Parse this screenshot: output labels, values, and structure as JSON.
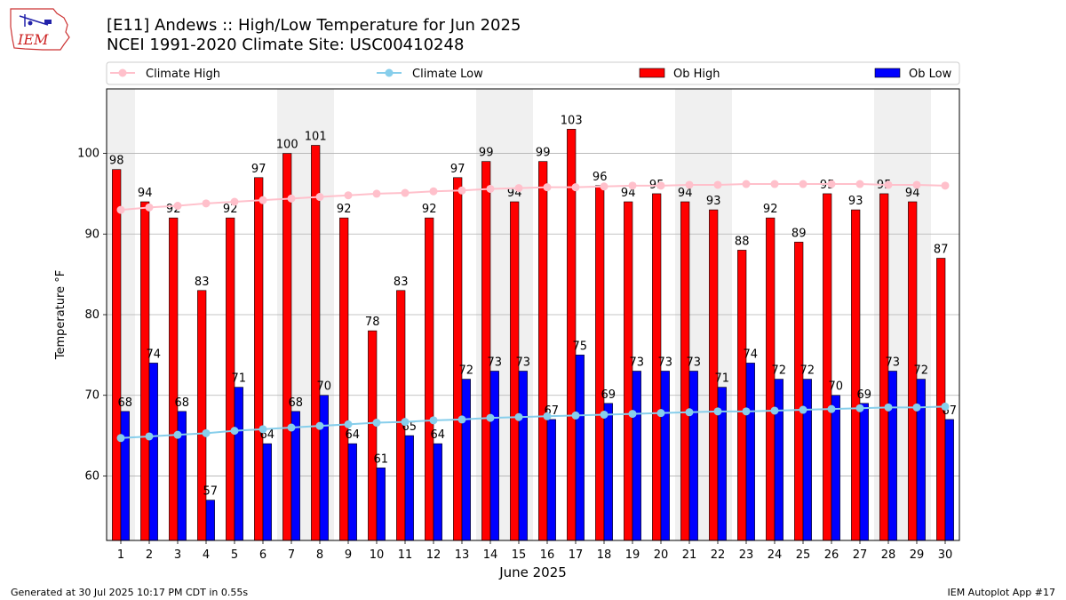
{
  "header": {
    "logo_text": "IEM",
    "title_line1": "[E11] Andews :: High/Low Temperature for Jun 2025",
    "title_line2": "NCEI 1991-2020 Climate Site: USC00410248"
  },
  "footer": {
    "generated": "Generated at 30 Jul 2025 10:17 PM CDT in 0.55s",
    "app": "IEM Autoplot App #17"
  },
  "colors": {
    "ob_high": "#ff0000",
    "ob_low": "#0000ff",
    "climate_high": "#ffc0cb",
    "climate_low": "#87ceeb",
    "weekend_shade": "#f0f0f0"
  },
  "chart_data": {
    "type": "bar",
    "xlabel": "June 2025",
    "ylabel": "Temperature °F",
    "ylim": [
      52,
      108
    ],
    "yticks": [
      60,
      70,
      80,
      90,
      100
    ],
    "grid": true,
    "legend_position": "top",
    "categories": [
      "1",
      "2",
      "3",
      "4",
      "5",
      "6",
      "7",
      "8",
      "9",
      "10",
      "11",
      "12",
      "13",
      "14",
      "15",
      "16",
      "17",
      "18",
      "19",
      "20",
      "21",
      "22",
      "23",
      "24",
      "25",
      "26",
      "27",
      "28",
      "29",
      "30"
    ],
    "shaded_weekends": [
      [
        1,
        1
      ],
      [
        7,
        8
      ],
      [
        14,
        15
      ],
      [
        21,
        22
      ],
      [
        28,
        29
      ]
    ],
    "series": [
      {
        "name": "Ob High",
        "kind": "bar",
        "values": [
          98,
          94,
          92,
          83,
          92,
          97,
          100,
          101,
          92,
          78,
          83,
          92,
          97,
          99,
          94,
          99,
          103,
          96,
          94,
          95,
          94,
          93,
          88,
          92,
          89,
          95,
          93,
          95,
          94,
          87
        ]
      },
      {
        "name": "Ob Low",
        "kind": "bar",
        "values": [
          68,
          74,
          68,
          57,
          71,
          64,
          68,
          70,
          64,
          61,
          65,
          64,
          72,
          73,
          73,
          67,
          75,
          69,
          73,
          73,
          73,
          71,
          74,
          72,
          72,
          70,
          69,
          73,
          72,
          67
        ]
      },
      {
        "name": "Climate High",
        "kind": "line",
        "values": [
          93.0,
          93.3,
          93.5,
          93.8,
          94.0,
          94.2,
          94.4,
          94.6,
          94.8,
          95.0,
          95.1,
          95.3,
          95.4,
          95.6,
          95.7,
          95.8,
          95.8,
          95.9,
          96.0,
          96.0,
          96.1,
          96.1,
          96.2,
          96.2,
          96.2,
          96.2,
          96.2,
          96.1,
          96.1,
          96.0
        ]
      },
      {
        "name": "Climate Low",
        "kind": "line",
        "values": [
          64.7,
          64.9,
          65.1,
          65.3,
          65.6,
          65.8,
          66.0,
          66.2,
          66.4,
          66.6,
          66.7,
          66.9,
          67.0,
          67.2,
          67.3,
          67.4,
          67.5,
          67.6,
          67.7,
          67.8,
          67.9,
          68.0,
          68.0,
          68.1,
          68.2,
          68.3,
          68.4,
          68.5,
          68.5,
          68.6
        ]
      }
    ]
  }
}
